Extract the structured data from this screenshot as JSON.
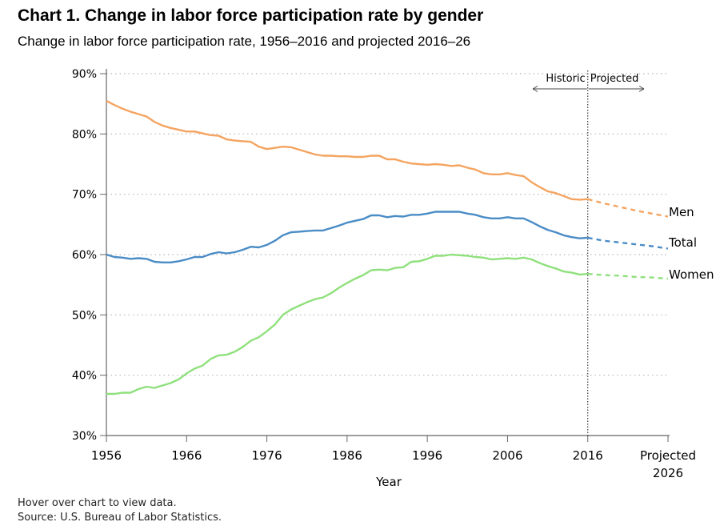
{
  "header": {
    "title": "Chart 1. Change in labor force participation rate by gender",
    "subtitle": "Change in labor force participation rate, 1956–2016 and projected 2016–26"
  },
  "footer": {
    "hover_note": "Hover over chart to view data.",
    "source": "Source: U.S. Bureau of Labor Statistics."
  },
  "chart_data": {
    "type": "line",
    "xlabel": "Year",
    "ylabel": "",
    "xlim": [
      1956,
      2026
    ],
    "ylim": [
      30,
      90
    ],
    "y_ticks": [
      {
        "value": 30,
        "label": "30%"
      },
      {
        "value": 40,
        "label": "40%"
      },
      {
        "value": 50,
        "label": "50%"
      },
      {
        "value": 60,
        "label": "60%"
      },
      {
        "value": 70,
        "label": "70%"
      },
      {
        "value": 80,
        "label": "80%"
      },
      {
        "value": 90,
        "label": "90%"
      }
    ],
    "x_ticks": [
      {
        "value": 1956,
        "label": "1956"
      },
      {
        "value": 1966,
        "label": "1966"
      },
      {
        "value": 1976,
        "label": "1976"
      },
      {
        "value": 1986,
        "label": "1986"
      },
      {
        "value": 1996,
        "label": "1996"
      },
      {
        "value": 2006,
        "label": "2006"
      },
      {
        "value": 2016,
        "label": "2016"
      },
      {
        "value": 2026,
        "label": "Projected|2026"
      }
    ],
    "grid": "horizontal-dotted",
    "divider": {
      "x": 2016,
      "left_label": "Historic",
      "right_label": "Projected"
    },
    "series": [
      {
        "name": "Men",
        "color": "#f4a460",
        "historic": [
          [
            1956,
            85.5
          ],
          [
            1957,
            84.8
          ],
          [
            1958,
            84.2
          ],
          [
            1959,
            83.7
          ],
          [
            1960,
            83.3
          ],
          [
            1961,
            82.9
          ],
          [
            1962,
            82.0
          ],
          [
            1963,
            81.4
          ],
          [
            1964,
            81.0
          ],
          [
            1965,
            80.7
          ],
          [
            1966,
            80.4
          ],
          [
            1967,
            80.4
          ],
          [
            1968,
            80.1
          ],
          [
            1969,
            79.8
          ],
          [
            1970,
            79.7
          ],
          [
            1971,
            79.1
          ],
          [
            1972,
            78.9
          ],
          [
            1973,
            78.8
          ],
          [
            1974,
            78.7
          ],
          [
            1975,
            77.9
          ],
          [
            1976,
            77.5
          ],
          [
            1977,
            77.7
          ],
          [
            1978,
            77.9
          ],
          [
            1979,
            77.8
          ],
          [
            1980,
            77.4
          ],
          [
            1981,
            77.0
          ],
          [
            1982,
            76.6
          ],
          [
            1983,
            76.4
          ],
          [
            1984,
            76.4
          ],
          [
            1985,
            76.3
          ],
          [
            1986,
            76.3
          ],
          [
            1987,
            76.2
          ],
          [
            1988,
            76.2
          ],
          [
            1989,
            76.4
          ],
          [
            1990,
            76.4
          ],
          [
            1991,
            75.8
          ],
          [
            1992,
            75.8
          ],
          [
            1993,
            75.4
          ],
          [
            1994,
            75.1
          ],
          [
            1995,
            75.0
          ],
          [
            1996,
            74.9
          ],
          [
            1997,
            75.0
          ],
          [
            1998,
            74.9
          ],
          [
            1999,
            74.7
          ],
          [
            2000,
            74.8
          ],
          [
            2001,
            74.4
          ],
          [
            2002,
            74.1
          ],
          [
            2003,
            73.5
          ],
          [
            2004,
            73.3
          ],
          [
            2005,
            73.3
          ],
          [
            2006,
            73.5
          ],
          [
            2007,
            73.2
          ],
          [
            2008,
            73.0
          ],
          [
            2009,
            72.0
          ],
          [
            2010,
            71.2
          ],
          [
            2011,
            70.5
          ],
          [
            2012,
            70.2
          ],
          [
            2013,
            69.7
          ],
          [
            2014,
            69.2
          ],
          [
            2015,
            69.1
          ],
          [
            2016,
            69.2
          ]
        ],
        "projected": [
          [
            2016,
            69.2
          ],
          [
            2018,
            68.5
          ],
          [
            2020,
            67.9
          ],
          [
            2022,
            67.3
          ],
          [
            2024,
            66.8
          ],
          [
            2026,
            66.3
          ]
        ]
      },
      {
        "name": "Total",
        "color": "#4a8cc6",
        "historic": [
          [
            1956,
            60.0
          ],
          [
            1957,
            59.6
          ],
          [
            1958,
            59.5
          ],
          [
            1959,
            59.3
          ],
          [
            1960,
            59.4
          ],
          [
            1961,
            59.3
          ],
          [
            1962,
            58.8
          ],
          [
            1963,
            58.7
          ],
          [
            1964,
            58.7
          ],
          [
            1965,
            58.9
          ],
          [
            1966,
            59.2
          ],
          [
            1967,
            59.6
          ],
          [
            1968,
            59.6
          ],
          [
            1969,
            60.1
          ],
          [
            1970,
            60.4
          ],
          [
            1971,
            60.2
          ],
          [
            1972,
            60.4
          ],
          [
            1973,
            60.8
          ],
          [
            1974,
            61.3
          ],
          [
            1975,
            61.2
          ],
          [
            1976,
            61.6
          ],
          [
            1977,
            62.3
          ],
          [
            1978,
            63.2
          ],
          [
            1979,
            63.7
          ],
          [
            1980,
            63.8
          ],
          [
            1981,
            63.9
          ],
          [
            1982,
            64.0
          ],
          [
            1983,
            64.0
          ],
          [
            1984,
            64.4
          ],
          [
            1985,
            64.8
          ],
          [
            1986,
            65.3
          ],
          [
            1987,
            65.6
          ],
          [
            1988,
            65.9
          ],
          [
            1989,
            66.5
          ],
          [
            1990,
            66.5
          ],
          [
            1991,
            66.2
          ],
          [
            1992,
            66.4
          ],
          [
            1993,
            66.3
          ],
          [
            1994,
            66.6
          ],
          [
            1995,
            66.6
          ],
          [
            1996,
            66.8
          ],
          [
            1997,
            67.1
          ],
          [
            1998,
            67.1
          ],
          [
            1999,
            67.1
          ],
          [
            2000,
            67.1
          ],
          [
            2001,
            66.8
          ],
          [
            2002,
            66.6
          ],
          [
            2003,
            66.2
          ],
          [
            2004,
            66.0
          ],
          [
            2005,
            66.0
          ],
          [
            2006,
            66.2
          ],
          [
            2007,
            66.0
          ],
          [
            2008,
            66.0
          ],
          [
            2009,
            65.4
          ],
          [
            2010,
            64.7
          ],
          [
            2011,
            64.1
          ],
          [
            2012,
            63.7
          ],
          [
            2013,
            63.2
          ],
          [
            2014,
            62.9
          ],
          [
            2015,
            62.7
          ],
          [
            2016,
            62.8
          ]
        ],
        "projected": [
          [
            2016,
            62.8
          ],
          [
            2018,
            62.3
          ],
          [
            2020,
            62.0
          ],
          [
            2022,
            61.7
          ],
          [
            2024,
            61.4
          ],
          [
            2026,
            61.0
          ]
        ]
      },
      {
        "name": "Women",
        "color": "#8fe07c",
        "historic": [
          [
            1956,
            36.9
          ],
          [
            1957,
            36.9
          ],
          [
            1958,
            37.1
          ],
          [
            1959,
            37.1
          ],
          [
            1960,
            37.7
          ],
          [
            1961,
            38.1
          ],
          [
            1962,
            37.9
          ],
          [
            1963,
            38.3
          ],
          [
            1964,
            38.7
          ],
          [
            1965,
            39.3
          ],
          [
            1966,
            40.3
          ],
          [
            1967,
            41.1
          ],
          [
            1968,
            41.6
          ],
          [
            1969,
            42.7
          ],
          [
            1970,
            43.3
          ],
          [
            1971,
            43.4
          ],
          [
            1972,
            43.9
          ],
          [
            1973,
            44.7
          ],
          [
            1974,
            45.7
          ],
          [
            1975,
            46.3
          ],
          [
            1976,
            47.3
          ],
          [
            1977,
            48.4
          ],
          [
            1978,
            50.0
          ],
          [
            1979,
            50.9
          ],
          [
            1980,
            51.5
          ],
          [
            1981,
            52.1
          ],
          [
            1982,
            52.6
          ],
          [
            1983,
            52.9
          ],
          [
            1984,
            53.6
          ],
          [
            1985,
            54.5
          ],
          [
            1986,
            55.3
          ],
          [
            1987,
            56.0
          ],
          [
            1988,
            56.6
          ],
          [
            1989,
            57.4
          ],
          [
            1990,
            57.5
          ],
          [
            1991,
            57.4
          ],
          [
            1992,
            57.8
          ],
          [
            1993,
            57.9
          ],
          [
            1994,
            58.8
          ],
          [
            1995,
            58.9
          ],
          [
            1996,
            59.3
          ],
          [
            1997,
            59.8
          ],
          [
            1998,
            59.8
          ],
          [
            1999,
            60.0
          ],
          [
            2000,
            59.9
          ],
          [
            2001,
            59.8
          ],
          [
            2002,
            59.6
          ],
          [
            2003,
            59.5
          ],
          [
            2004,
            59.2
          ],
          [
            2005,
            59.3
          ],
          [
            2006,
            59.4
          ],
          [
            2007,
            59.3
          ],
          [
            2008,
            59.5
          ],
          [
            2009,
            59.2
          ],
          [
            2010,
            58.6
          ],
          [
            2011,
            58.1
          ],
          [
            2012,
            57.7
          ],
          [
            2013,
            57.2
          ],
          [
            2014,
            57.0
          ],
          [
            2015,
            56.7
          ],
          [
            2016,
            56.8
          ]
        ],
        "projected": [
          [
            2016,
            56.8
          ],
          [
            2018,
            56.6
          ],
          [
            2020,
            56.5
          ],
          [
            2022,
            56.3
          ],
          [
            2024,
            56.2
          ],
          [
            2026,
            56.0
          ]
        ]
      }
    ]
  }
}
